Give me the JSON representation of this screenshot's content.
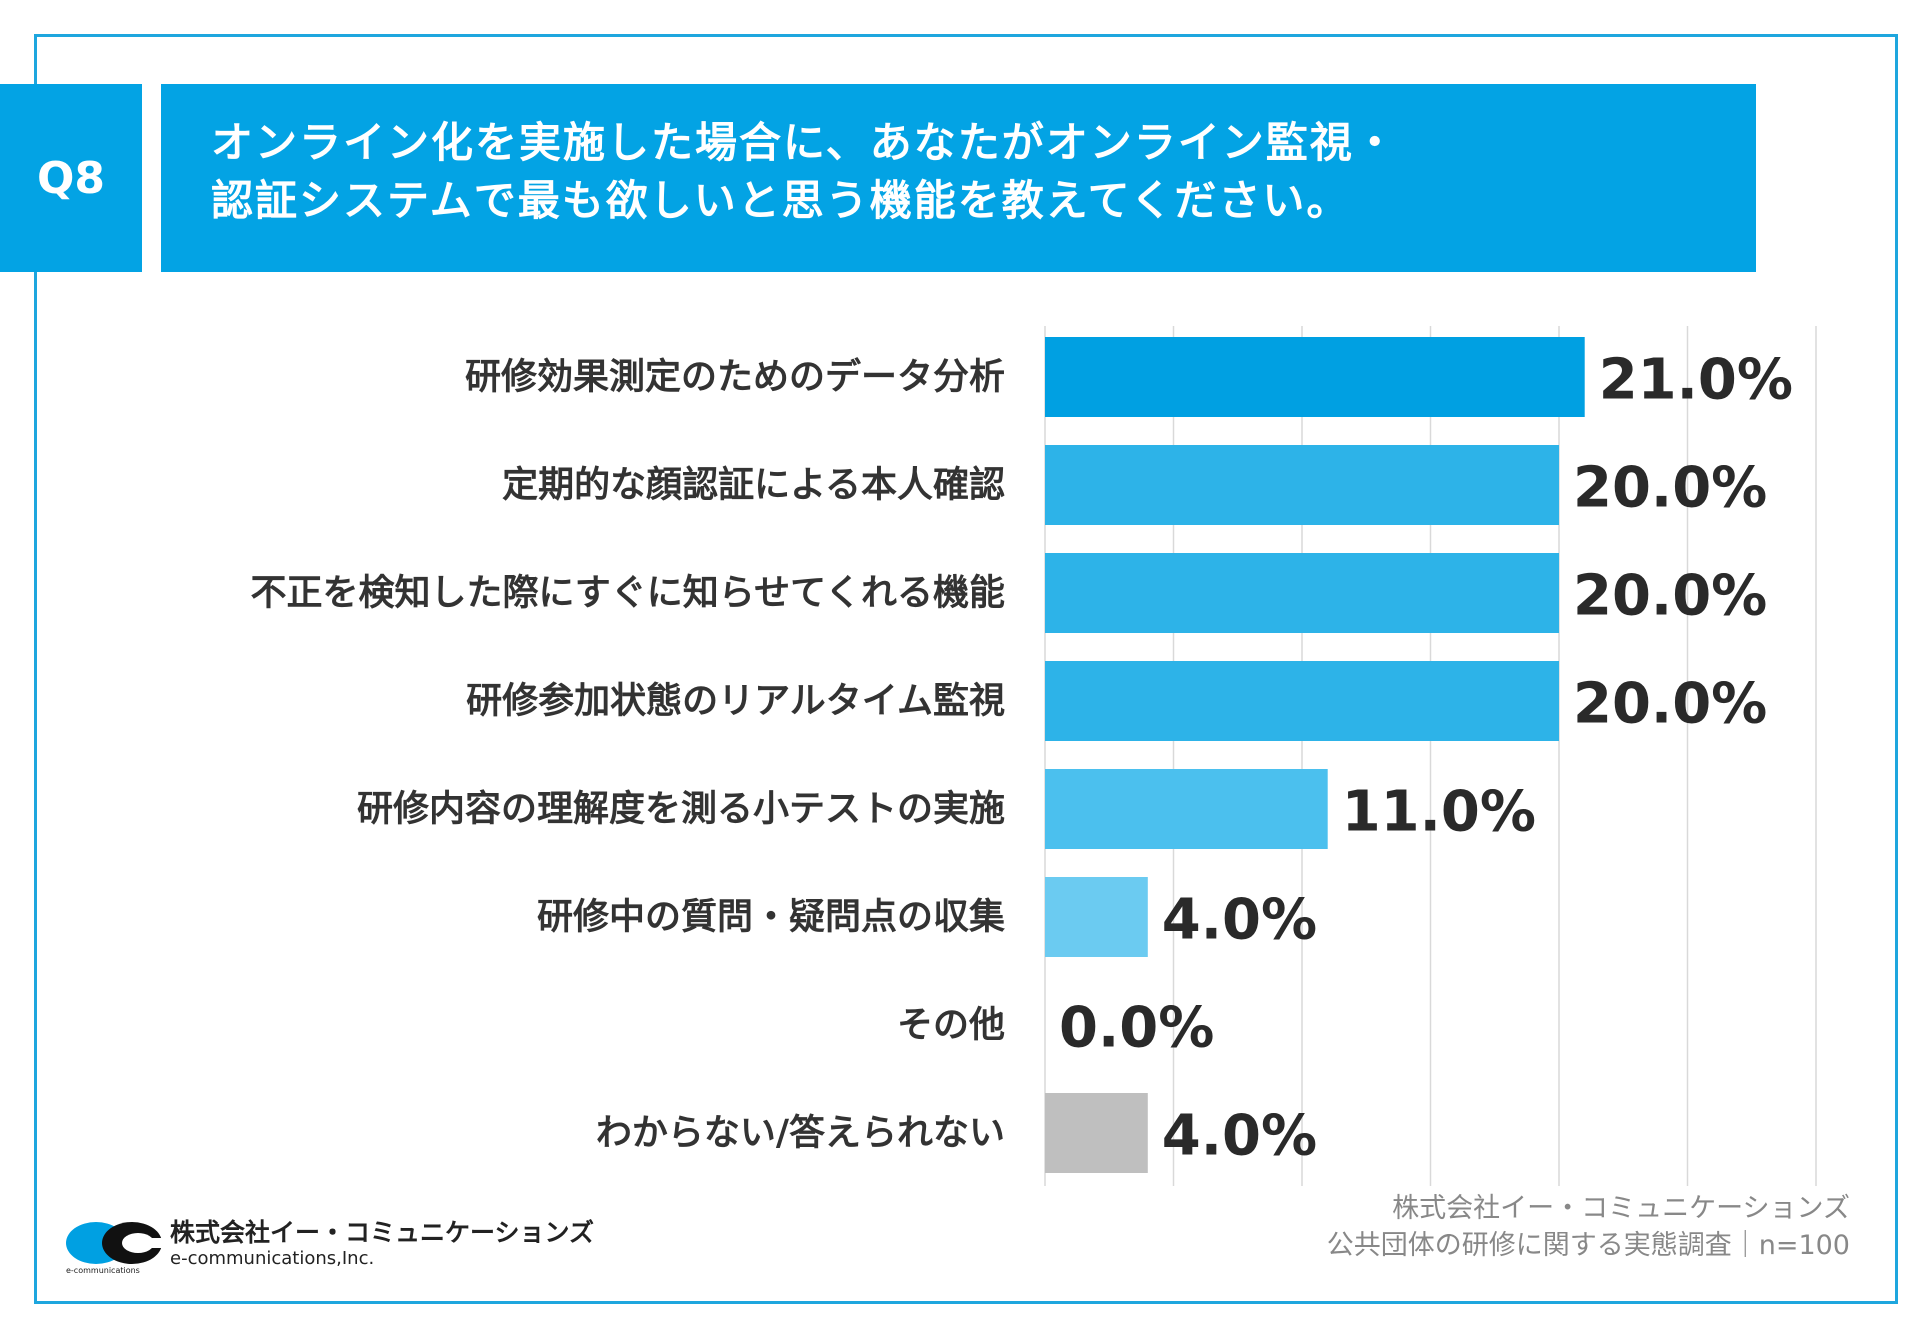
{
  "question": {
    "badge": "Q8",
    "line1": "オンライン化を実施した場合に、あなたがオンライン監視・",
    "line2": "認証システムで最も欲しいと思う機能を教えてください。"
  },
  "chart_data": {
    "type": "bar",
    "orientation": "horizontal",
    "categories": [
      "研修効果測定のためのデータ分析",
      "定期的な顔認証による本人確認",
      "不正を検知した際にすぐに知らせてくれる機能",
      "研修参加状態のリアルタイム監視",
      "研修内容の理解度を測る小テストの実施",
      "研修中の質問・疑問点の収集",
      "その他",
      "わからない/答えられない"
    ],
    "values": [
      21.0,
      20.0,
      20.0,
      20.0,
      11.0,
      4.0,
      0.0,
      4.0
    ],
    "value_labels": [
      "21.0%",
      "20.0%",
      "20.0%",
      "20.0%",
      "11.0%",
      "4.0%",
      "0.0%",
      "4.0%"
    ],
    "bar_colors": [
      "#00a0e2",
      "#2db3e8",
      "#2db3e8",
      "#2db3e8",
      "#4bc0ee",
      "#6bcbf1",
      "#6bcbf1",
      "#bfbfbf"
    ],
    "xlim": [
      0,
      30
    ],
    "grid": true,
    "title": "",
    "xlabel": "",
    "ylabel": ""
  },
  "footer": {
    "credit_line1": "株式会社イー・コミュニケーションズ",
    "credit_line2": "公共団体の研修に関する実態調査｜n=100"
  },
  "logo": {
    "jp": "株式会社イー・コミュニケーションズ",
    "en": "e-communications,Inc.",
    "tag": "e-communications"
  },
  "colors": {
    "accent": "#03a3e4",
    "border": "#1ea6de"
  }
}
